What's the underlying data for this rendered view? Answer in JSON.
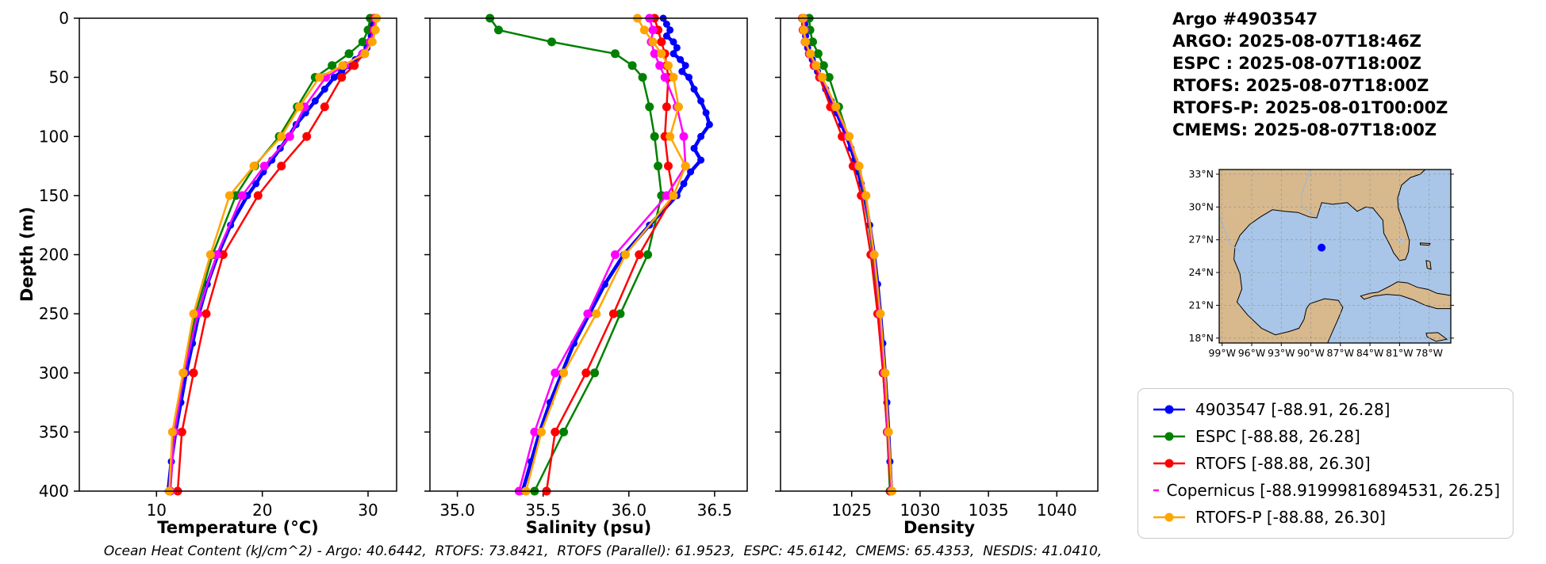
{
  "info": {
    "title": "Argo #4903547",
    "lines": [
      "ARGO: 2025-08-07T18:46Z",
      "ESPC : 2025-08-07T18:00Z",
      "RTOFS: 2025-08-07T18:00Z",
      "RTOFS-P: 2025-08-01T00:00Z",
      "CMEMS: 2025-08-07T18:00Z"
    ]
  },
  "legend": {
    "entries": [
      {
        "label": "4903547 [-88.91, 26.28]",
        "color": "#0000ff"
      },
      {
        "label": "ESPC [-88.88, 26.28]",
        "color": "#008000"
      },
      {
        "label": "RTOFS [-88.88, 26.30]",
        "color": "#ff0000"
      },
      {
        "label": "Copernicus [-88.91999816894531, 26.25]",
        "color": "#ff00ff"
      },
      {
        "label": "RTOFS-P [-88.88, 26.30]",
        "color": "#ffa500"
      }
    ]
  },
  "map": {
    "lon_tick_labels": [
      "99°W",
      "96°W",
      "93°W",
      "90°W",
      "87°W",
      "84°W",
      "81°W",
      "78°W"
    ],
    "lat_tick_labels": [
      "18°N",
      "21°N",
      "24°N",
      "27°N",
      "30°N",
      "33°N"
    ],
    "marker": {
      "lon": -88.91,
      "lat": 26.28,
      "color": "#0000ff"
    },
    "land_color": "#d8b98e",
    "water_color": "#a9c6e8",
    "river_color": "#9db8d6",
    "grid_color": "#888888"
  },
  "caption": "Ocean Heat Content (kJ/cm^2) - Argo: 40.6442,  RTOFS: 73.8421,  RTOFS (Parallel): 61.9523,  ESPC: 45.6142,  CMEMS: 65.4353,  NESDIS: 41.0410,",
  "chart_data": {
    "type": "line",
    "ylabel": "Depth (m)",
    "ylim": [
      0,
      400
    ],
    "yticks": [
      0,
      50,
      100,
      150,
      200,
      250,
      300,
      350,
      400
    ],
    "depths": {
      "argo": [
        0,
        5,
        10,
        15,
        20,
        25,
        30,
        35,
        40,
        45,
        50,
        60,
        70,
        80,
        90,
        100,
        110,
        120,
        130,
        140,
        150,
        175,
        200,
        225,
        250,
        275,
        300,
        325,
        350,
        375,
        400
      ],
      "models": [
        0,
        10,
        20,
        30,
        40,
        50,
        75,
        100,
        125,
        150,
        200,
        250,
        300,
        350,
        400
      ]
    },
    "panels": [
      {
        "xlabel": "Temperature (°C)",
        "xlim": [
          2.7,
          32.7
        ],
        "xticks": [
          "10",
          "20",
          "30"
        ],
        "series": [
          {
            "name": "4903547",
            "color": "#0000ff",
            "lw": 4.5,
            "ms": 4.5,
            "depths": "argo",
            "values": [
              30.4,
              30.4,
              30.35,
              30.3,
              30.2,
              29.9,
              29.4,
              28.8,
              28.2,
              27.5,
              26.8,
              25.9,
              25.0,
              24.1,
              23.2,
              22.5,
              21.7,
              20.9,
              20.1,
              19.4,
              18.6,
              17.0,
              15.8,
              14.8,
              14.0,
              13.4,
              12.8,
              12.3,
              11.8,
              11.4,
              11.1
            ]
          },
          {
            "name": "ESPC",
            "color": "#008000",
            "lw": 2.5,
            "ms": 5.5,
            "depths": "models",
            "values": [
              30.2,
              30.0,
              29.5,
              28.2,
              26.6,
              25.0,
              23.3,
              21.6,
              19.3,
              17.5,
              15.3,
              13.7,
              12.6,
              11.7,
              11.3
            ]
          },
          {
            "name": "RTOFS",
            "color": "#ff0000",
            "lw": 2.5,
            "ms": 5.5,
            "depths": "models",
            "values": [
              30.6,
              30.5,
              30.2,
              29.6,
              28.7,
              27.5,
              25.9,
              24.2,
              21.8,
              19.6,
              16.3,
              14.7,
              13.5,
              12.4,
              12.0
            ]
          },
          {
            "name": "Copernicus",
            "color": "#ff00ff",
            "lw": 2.5,
            "ms": 5.5,
            "depths": "models",
            "values": [
              30.7,
              30.6,
              30.2,
              29.5,
              27.8,
              26.0,
              24.0,
              22.6,
              20.2,
              18.1,
              15.7,
              13.9,
              12.6,
              11.7,
              11.3
            ]
          },
          {
            "name": "RTOFS-P",
            "color": "#ffa500",
            "lw": 2.5,
            "ms": 5.5,
            "depths": "models",
            "values": [
              30.8,
              30.7,
              30.4,
              29.7,
              27.6,
              25.4,
              23.5,
              21.8,
              19.2,
              16.9,
              15.1,
              13.5,
              12.5,
              11.5,
              11.2
            ]
          }
        ]
      },
      {
        "xlabel": "Salinity (psu)",
        "xlim": [
          34.84,
          36.69
        ],
        "xticks": [
          "35.0",
          "35.5",
          "36.0",
          "36.5"
        ],
        "series": [
          {
            "name": "4903547",
            "color": "#0000ff",
            "lw": 4.5,
            "ms": 4.5,
            "depths": "argo",
            "values": [
              36.2,
              36.22,
              36.24,
              36.22,
              36.26,
              36.28,
              36.26,
              36.3,
              36.33,
              36.31,
              36.35,
              36.38,
              36.42,
              36.45,
              36.47,
              36.42,
              36.38,
              36.42,
              36.36,
              36.32,
              36.28,
              36.12,
              35.97,
              35.86,
              35.77,
              35.68,
              35.61,
              35.54,
              35.48,
              35.43,
              35.38
            ]
          },
          {
            "name": "ESPC",
            "color": "#008000",
            "lw": 2.5,
            "ms": 5.5,
            "depths": "models",
            "values": [
              35.19,
              35.24,
              35.55,
              35.92,
              36.02,
              36.08,
              36.12,
              36.15,
              36.17,
              36.19,
              36.11,
              35.95,
              35.8,
              35.62,
              35.45
            ]
          },
          {
            "name": "RTOFS",
            "color": "#ff0000",
            "lw": 2.5,
            "ms": 5.5,
            "depths": "models",
            "values": [
              36.15,
              36.17,
              36.19,
              36.21,
              36.22,
              36.23,
              36.22,
              36.21,
              36.23,
              36.26,
              36.06,
              35.91,
              35.75,
              35.57,
              35.52
            ]
          },
          {
            "name": "Copernicus",
            "color": "#ff00ff",
            "lw": 2.5,
            "ms": 5.5,
            "depths": "models",
            "values": [
              36.12,
              36.14,
              36.13,
              36.15,
              36.18,
              36.21,
              36.28,
              36.32,
              36.33,
              36.22,
              35.92,
              35.76,
              35.57,
              35.45,
              35.36
            ]
          },
          {
            "name": "RTOFS-P",
            "color": "#ffa500",
            "lw": 2.5,
            "ms": 5.5,
            "depths": "models",
            "values": [
              36.05,
              36.09,
              36.14,
              36.19,
              36.23,
              36.26,
              36.29,
              36.24,
              36.33,
              36.26,
              35.98,
              35.81,
              35.62,
              35.49,
              35.4
            ]
          }
        ]
      },
      {
        "xlabel": "Density",
        "xlim": [
          1019.8,
          1043.0
        ],
        "xticks": [
          "1025",
          "1030",
          "1035",
          "1040"
        ],
        "series": [
          {
            "name": "4903547",
            "color": "#0000ff",
            "lw": 4.5,
            "ms": 4.5,
            "depths": "argo",
            "values": [
              1021.55,
              1021.57,
              1021.6,
              1021.63,
              1021.68,
              1021.78,
              1021.95,
              1022.12,
              1022.3,
              1022.5,
              1022.72,
              1023.1,
              1023.5,
              1023.9,
              1024.28,
              1024.62,
              1024.95,
              1025.22,
              1025.48,
              1025.7,
              1025.92,
              1026.32,
              1026.65,
              1026.9,
              1027.1,
              1027.28,
              1027.44,
              1027.58,
              1027.7,
              1027.8,
              1027.9
            ]
          },
          {
            "name": "ESPC",
            "color": "#008000",
            "lw": 2.5,
            "ms": 5.5,
            "depths": "models",
            "values": [
              1021.9,
              1021.95,
              1022.15,
              1022.55,
              1022.95,
              1023.35,
              1024.05,
              1024.75,
              1025.45,
              1025.95,
              1026.55,
              1026.95,
              1027.3,
              1027.6,
              1027.8
            ]
          },
          {
            "name": "RTOFS",
            "color": "#ff0000",
            "lw": 2.5,
            "ms": 5.5,
            "depths": "models",
            "values": [
              1021.4,
              1021.45,
              1021.6,
              1021.9,
              1022.25,
              1022.65,
              1023.45,
              1024.3,
              1025.1,
              1025.7,
              1026.4,
              1026.9,
              1027.3,
              1027.6,
              1027.85
            ]
          },
          {
            "name": "Copernicus",
            "color": "#ff00ff",
            "lw": 2.5,
            "ms": 5.5,
            "depths": "models",
            "values": [
              1021.5,
              1021.55,
              1021.65,
              1021.95,
              1022.35,
              1022.8,
              1023.8,
              1024.75,
              1025.5,
              1026.0,
              1026.6,
              1027.05,
              1027.4,
              1027.65,
              1027.9
            ]
          },
          {
            "name": "RTOFS-P",
            "color": "#ffa500",
            "lw": 2.5,
            "ms": 5.5,
            "depths": "models",
            "values": [
              1021.45,
              1021.5,
              1021.62,
              1021.98,
              1022.4,
              1022.85,
              1023.85,
              1024.82,
              1025.55,
              1026.05,
              1026.65,
              1027.1,
              1027.45,
              1027.7,
              1027.95
            ]
          }
        ]
      }
    ]
  }
}
